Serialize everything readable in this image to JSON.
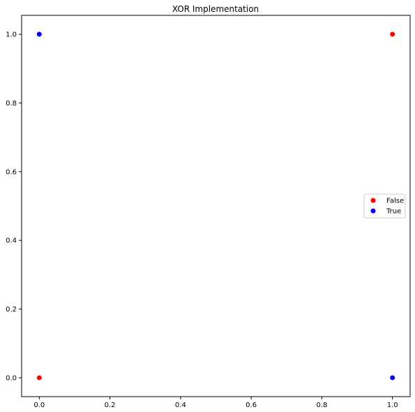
{
  "chart_data": {
    "type": "scatter",
    "title": "XOR Implementation",
    "xlabel": "",
    "ylabel": "",
    "xlim": [
      -0.05,
      1.05
    ],
    "ylim": [
      -0.055,
      1.055
    ],
    "xticks": [
      "0.0",
      "0.2",
      "0.4",
      "0.6",
      "0.8",
      "1.0"
    ],
    "yticks": [
      "0.0",
      "0.2",
      "0.4",
      "0.6",
      "0.8",
      "1.0"
    ],
    "grid": false,
    "legend_position": "right",
    "series": [
      {
        "name": "False",
        "color": "#ff0000",
        "points": [
          {
            "x": 0,
            "y": 0
          },
          {
            "x": 1,
            "y": 1
          }
        ]
      },
      {
        "name": "True",
        "color": "#0000ff",
        "points": [
          {
            "x": 0,
            "y": 1
          },
          {
            "x": 1,
            "y": 0
          }
        ]
      }
    ]
  }
}
